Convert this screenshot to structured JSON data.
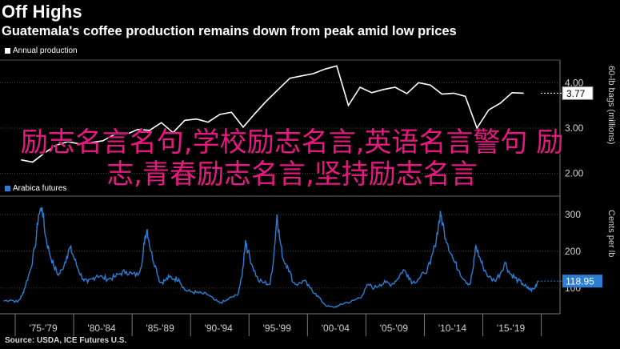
{
  "header": {
    "title": "Off Highs",
    "subtitle": "Guatemala's coffee production remains down from peak amid low prices"
  },
  "legend": {
    "top": "Annual production",
    "bottom": "Arabica futures"
  },
  "source": "Source: USDA, ICE Futures U.S.",
  "overlay_text": "励志名言名句,学校励志名言,英语名言警句 励志,青春励志名言,坚持励志名言",
  "colors": {
    "production": "#ffffff",
    "price": "#2a7fd4",
    "grid": "#444444",
    "overlay": "#e5197f",
    "callout_top_bg": "#ffffff",
    "callout_bottom_bg": "#2a7fd4"
  },
  "chart_data": [
    {
      "type": "line",
      "name": "production",
      "ylabel": "60-lb bags (millions)",
      "ylim": [
        1.5,
        4.5
      ],
      "y_ticks": [
        "2.00",
        "3.00",
        "4.00"
      ],
      "last_value_label": "3.77",
      "x": [
        1975,
        1976,
        1977,
        1978,
        1979,
        1980,
        1981,
        1982,
        1983,
        1984,
        1985,
        1986,
        1987,
        1988,
        1989,
        1990,
        1991,
        1992,
        1993,
        1994,
        1995,
        1996,
        1997,
        1998,
        1999,
        2000,
        2001,
        2002,
        2003,
        2004,
        2005,
        2006,
        2007,
        2008,
        2009,
        2010,
        2011,
        2012,
        2013,
        2014,
        2015,
        2016,
        2017,
        2018
      ],
      "series": [
        {
          "name": "Annual production",
          "values": [
            2.3,
            2.25,
            2.45,
            2.62,
            2.7,
            2.65,
            2.68,
            2.72,
            2.86,
            2.86,
            2.97,
            2.95,
            3.12,
            2.9,
            3.17,
            3.2,
            3.13,
            3.3,
            3.35,
            3.02,
            3.32,
            3.6,
            3.85,
            4.1,
            4.15,
            4.2,
            4.3,
            4.37,
            3.5,
            3.9,
            3.78,
            3.85,
            3.9,
            3.76,
            4.0,
            3.95,
            3.75,
            3.77,
            3.7,
            3.0,
            3.4,
            3.55,
            3.78,
            3.77
          ]
        }
      ]
    },
    {
      "type": "line",
      "name": "price",
      "ylabel": "Cents per lb",
      "ylim": [
        30,
        350
      ],
      "y_ticks": [
        "100",
        "200",
        "300"
      ],
      "last_value_label": "118.95",
      "x_tick_labels": [
        "'75-'79",
        "'80-'84",
        "'85-'89",
        "'90-'94",
        "'95-'99",
        "'00-'04",
        "'05-'09",
        "'10-'14",
        "'15-'19"
      ],
      "series": [
        {
          "name": "Arabica futures",
          "points": [
            [
              1974.0,
              65
            ],
            [
              1974.6,
              68
            ],
            [
              1975.2,
              62
            ],
            [
              1975.6,
              80
            ],
            [
              1975.9,
              110
            ],
            [
              1976.3,
              150
            ],
            [
              1976.7,
              210
            ],
            [
              1977.0,
              300
            ],
            [
              1977.3,
              320
            ],
            [
              1977.6,
              240
            ],
            [
              1977.9,
              200
            ],
            [
              1978.3,
              160
            ],
            [
              1978.7,
              135
            ],
            [
              1979.0,
              150
            ],
            [
              1979.4,
              185
            ],
            [
              1979.7,
              210
            ],
            [
              1980.0,
              185
            ],
            [
              1980.4,
              150
            ],
            [
              1980.8,
              125
            ],
            [
              1981.2,
              115
            ],
            [
              1981.6,
              125
            ],
            [
              1982.0,
              135
            ],
            [
              1982.5,
              128
            ],
            [
              1983.0,
              125
            ],
            [
              1983.5,
              130
            ],
            [
              1984.0,
              140
            ],
            [
              1984.5,
              145
            ],
            [
              1985.0,
              138
            ],
            [
              1985.5,
              135
            ],
            [
              1985.9,
              180
            ],
            [
              1986.1,
              240
            ],
            [
              1986.3,
              260
            ],
            [
              1986.6,
              200
            ],
            [
              1987.0,
              160
            ],
            [
              1987.4,
              115
            ],
            [
              1987.8,
              120
            ],
            [
              1988.2,
              130
            ],
            [
              1988.6,
              125
            ],
            [
              1989.0,
              125
            ],
            [
              1989.5,
              95
            ],
            [
              1990.0,
              90
            ],
            [
              1990.5,
              88
            ],
            [
              1991.0,
              85
            ],
            [
              1991.5,
              82
            ],
            [
              1992.0,
              68
            ],
            [
              1992.5,
              60
            ],
            [
              1993.0,
              65
            ],
            [
              1993.5,
              75
            ],
            [
              1994.0,
              80
            ],
            [
              1994.4,
              130
            ],
            [
              1994.7,
              230
            ],
            [
              1994.9,
              200
            ],
            [
              1995.3,
              160
            ],
            [
              1995.8,
              120
            ],
            [
              1996.3,
              115
            ],
            [
              1996.8,
              110
            ],
            [
              1997.1,
              180
            ],
            [
              1997.4,
              300
            ],
            [
              1997.6,
              240
            ],
            [
              1997.9,
              180
            ],
            [
              1998.3,
              160
            ],
            [
              1998.8,
              115
            ],
            [
              1999.2,
              110
            ],
            [
              1999.7,
              120
            ],
            [
              2000.2,
              100
            ],
            [
              2000.7,
              85
            ],
            [
              2001.2,
              65
            ],
            [
              2001.7,
              50
            ],
            [
              2002.2,
              48
            ],
            [
              2002.7,
              52
            ],
            [
              2003.2,
              60
            ],
            [
              2003.7,
              62
            ],
            [
              2004.2,
              70
            ],
            [
              2004.7,
              80
            ],
            [
              2005.2,
              110
            ],
            [
              2005.7,
              100
            ],
            [
              2006.2,
              110
            ],
            [
              2006.7,
              115
            ],
            [
              2007.2,
              110
            ],
            [
              2007.7,
              125
            ],
            [
              2008.2,
              150
            ],
            [
              2008.6,
              135
            ],
            [
              2009.0,
              115
            ],
            [
              2009.5,
              125
            ],
            [
              2010.0,
              140
            ],
            [
              2010.5,
              165
            ],
            [
              2010.9,
              215
            ],
            [
              2011.2,
              270
            ],
            [
              2011.4,
              300
            ],
            [
              2011.7,
              255
            ],
            [
              2012.0,
              220
            ],
            [
              2012.5,
              175
            ],
            [
              2013.0,
              145
            ],
            [
              2013.5,
              120
            ],
            [
              2013.9,
              110
            ],
            [
              2014.2,
              160
            ],
            [
              2014.4,
              215
            ],
            [
              2014.7,
              185
            ],
            [
              2015.0,
              160
            ],
            [
              2015.5,
              130
            ],
            [
              2016.0,
              120
            ],
            [
              2016.5,
              140
            ],
            [
              2016.9,
              170
            ],
            [
              2017.3,
              140
            ],
            [
              2017.7,
              130
            ],
            [
              2018.0,
              120
            ],
            [
              2018.4,
              112
            ],
            [
              2018.8,
              100
            ],
            [
              2019.1,
              95
            ],
            [
              2019.4,
              98
            ],
            [
              2019.7,
              118.95
            ]
          ]
        }
      ]
    }
  ]
}
